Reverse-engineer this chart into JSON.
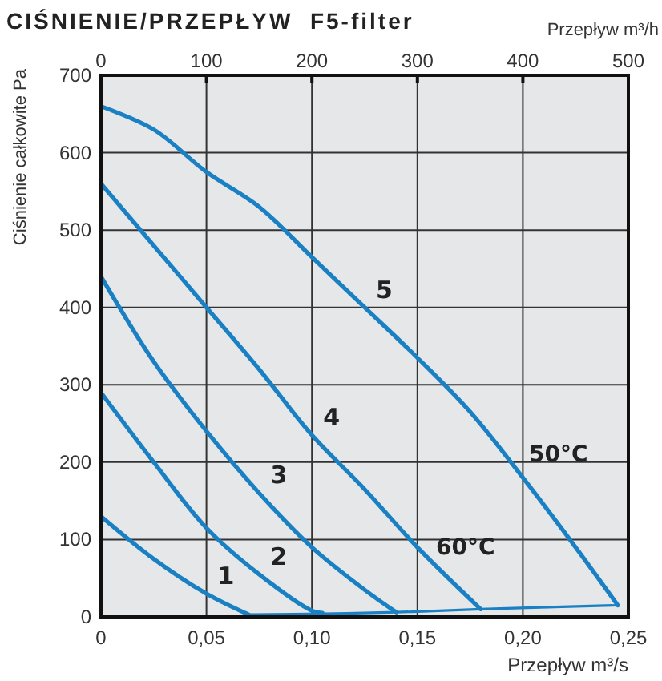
{
  "chart_data": {
    "type": "line",
    "title": "CIŚNIENIE/PRZEPŁYW  F5-filter",
    "xlabel": "Przepływ m³/s",
    "x2label": "Przepływ m³/h",
    "ylabel": "Ciśnienie całkowite Pa",
    "xlim": [
      0,
      0.25
    ],
    "xticks": [
      0,
      {
        "value": 0.05,
        "label": "0,05"
      },
      {
        "value": 0.1,
        "label": "0,10"
      },
      {
        "value": 0.15,
        "label": "0,15"
      },
      {
        "value": 0.2,
        "label": "0,20"
      },
      {
        "value": 0.25,
        "label": "0,25"
      }
    ],
    "x2lim": [
      0,
      500
    ],
    "x2ticks": [
      0,
      100,
      200,
      300,
      400,
      500
    ],
    "ylim": [
      0,
      700
    ],
    "yticks": [
      0,
      100,
      200,
      300,
      400,
      500,
      600,
      700
    ],
    "grid": true,
    "line_style": "solid",
    "marker": "none",
    "series": [
      {
        "name": "1",
        "color": "#1a80c4",
        "x": [
          0,
          0.025,
          0.05,
          0.07
        ],
        "values": [
          130,
          75,
          30,
          3
        ]
      },
      {
        "name": "2",
        "color": "#1a80c4",
        "x": [
          0,
          0.025,
          0.05,
          0.075,
          0.1,
          0.105
        ],
        "values": [
          290,
          200,
          115,
          55,
          8,
          5
        ]
      },
      {
        "name": "3",
        "color": "#1a80c4",
        "x": [
          0,
          0.025,
          0.05,
          0.075,
          0.1,
          0.125,
          0.14
        ],
        "values": [
          440,
          330,
          240,
          160,
          90,
          35,
          6
        ]
      },
      {
        "name": "4",
        "color": "#1a80c4",
        "x": [
          0,
          0.025,
          0.05,
          0.075,
          0.1,
          0.125,
          0.15,
          0.18
        ],
        "values": [
          560,
          480,
          400,
          320,
          235,
          165,
          90,
          10
        ]
      },
      {
        "name": "5",
        "color": "#1a80c4",
        "x": [
          0,
          0.025,
          0.05,
          0.075,
          0.1,
          0.125,
          0.15,
          0.175,
          0.2,
          0.225,
          0.245
        ],
        "values": [
          660,
          630,
          575,
          530,
          465,
          400,
          335,
          265,
          180,
          90,
          15
        ]
      },
      {
        "color": "#1a80c4",
        "x": [
          0.07,
          0.105,
          0.14,
          0.18,
          0.245
        ],
        "values": [
          3,
          4,
          6,
          10,
          15
        ]
      }
    ],
    "annotations": [
      "60°C",
      "50°C"
    ]
  }
}
